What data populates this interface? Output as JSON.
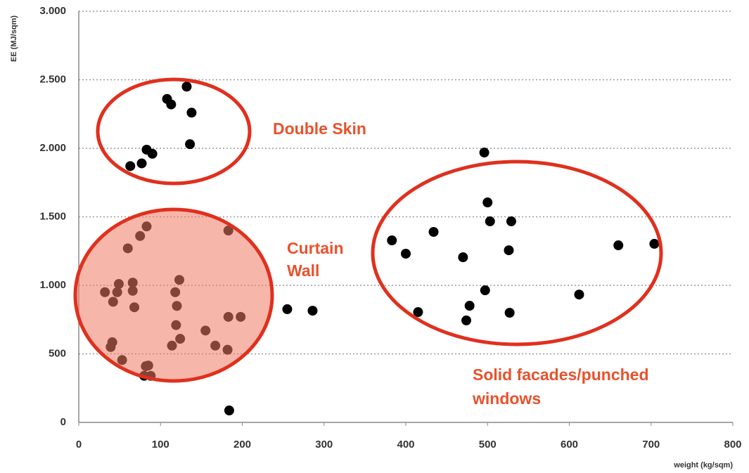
{
  "chart_data": {
    "type": "scatter",
    "x_label": "weight (kg/sqm)",
    "y_label": "EE (MJ/sqm)",
    "xlim": [
      0,
      800
    ],
    "ylim": [
      0,
      3000
    ],
    "xticks": [
      0,
      100,
      200,
      300,
      400,
      500,
      600,
      700,
      800
    ],
    "yticks": [
      0,
      {
        "value": 500,
        "label": "500"
      },
      {
        "value": 1000,
        "label": "1.000"
      },
      {
        "value": 1500,
        "label": "1.500"
      },
      {
        "value": 2000,
        "label": "2.000"
      },
      {
        "value": 2500,
        "label": "2.500"
      },
      {
        "value": 3000,
        "label": "3.000"
      }
    ],
    "grid": true,
    "color": "#000000",
    "x": [
      132,
      108,
      113,
      138,
      136,
      83,
      90,
      77,
      63,
      83,
      75,
      60,
      183,
      123,
      118,
      120,
      68,
      32,
      49,
      66,
      66,
      47,
      42,
      119,
      124,
      114,
      155,
      167,
      182,
      183,
      198,
      41,
      39,
      53,
      82,
      85,
      80,
      88,
      184,
      255,
      286,
      496,
      500,
      503,
      529,
      434,
      383,
      400,
      470,
      526,
      660,
      704,
      497,
      478,
      415,
      474,
      527,
      612
    ],
    "values": [
      2450,
      2360,
      2320,
      2260,
      2030,
      1990,
      1960,
      1890,
      1870,
      1430,
      1360,
      1270,
      1400,
      1040,
      950,
      850,
      840,
      950,
      1010,
      1020,
      960,
      950,
      880,
      710,
      610,
      560,
      670,
      560,
      530,
      770,
      770,
      585,
      550,
      455,
      410,
      415,
      340,
      340,
      87,
      826,
      815,
      1969,
      1605,
      1467,
      1467,
      1390,
      1328,
      1231,
      1205,
      1256,
      1292,
      1303,
      964,
      851,
      805,
      744,
      800,
      933
    ],
    "annotations": [
      {
        "lines": [
          "Double Skin"
        ]
      },
      {
        "lines": [
          "Curtain",
          "Wall"
        ]
      },
      {
        "lines": [
          "Solid facades/punched",
          "windows"
        ]
      }
    ]
  }
}
